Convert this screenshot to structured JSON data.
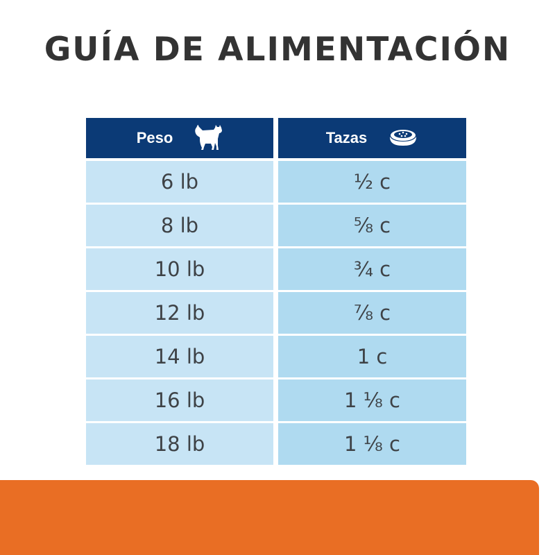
{
  "title": "GUÍA DE ALIMENTACIÓN",
  "table": {
    "headers": [
      {
        "label": "Peso",
        "icon": "cat-icon"
      },
      {
        "label": "Tazas",
        "icon": "food-bowl-icon"
      }
    ],
    "rows": [
      {
        "weight": "6 lb",
        "cups": "½ c"
      },
      {
        "weight": "8 lb",
        "cups": "⅝ c"
      },
      {
        "weight": "10 lb",
        "cups": "¾ c"
      },
      {
        "weight": "12 lb",
        "cups": "⅞ c"
      },
      {
        "weight": "14 lb",
        "cups": "1 c"
      },
      {
        "weight": "16 lb",
        "cups": "1 ⅛ c"
      },
      {
        "weight": "18 lb",
        "cups": "1 ⅛ c"
      }
    ]
  },
  "colors": {
    "header": "#0b3a76",
    "left_cell": "#c7e4f5",
    "right_cell": "#afdaf0",
    "accent": "#e96e24"
  }
}
